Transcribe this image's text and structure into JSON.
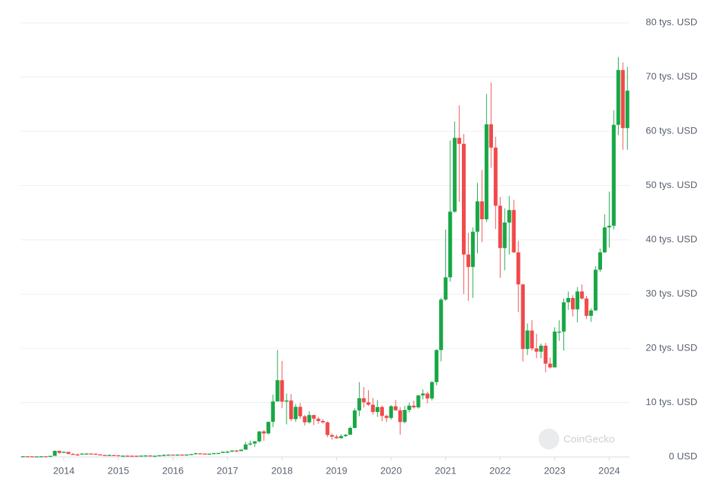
{
  "chart_data": {
    "type": "candlestick",
    "watermark": "CoinGecko",
    "up_color": "#18a745",
    "down_color": "#f04a4a",
    "grid": true,
    "ylim": [
      0,
      80000
    ],
    "yticks": [
      {
        "value": 0,
        "label": "0 USD"
      },
      {
        "value": 10000,
        "label": "10 tys. USD"
      },
      {
        "value": 20000,
        "label": "20 tys. USD"
      },
      {
        "value": 30000,
        "label": "30 tys. USD"
      },
      {
        "value": 40000,
        "label": "40 tys. USD"
      },
      {
        "value": 50000,
        "label": "50 tys. USD"
      },
      {
        "value": 60000,
        "label": "60 tys. USD"
      },
      {
        "value": 70000,
        "label": "70 tys. USD"
      },
      {
        "value": 80000,
        "label": "80 tys. USD"
      }
    ],
    "categories": [
      null,
      null,
      null,
      null,
      null,
      null,
      null,
      null,
      null,
      "2014",
      null,
      null,
      null,
      null,
      null,
      null,
      null,
      null,
      null,
      null,
      null,
      "2015",
      null,
      null,
      null,
      null,
      null,
      null,
      null,
      null,
      null,
      null,
      null,
      "2016",
      null,
      null,
      null,
      null,
      null,
      null,
      null,
      null,
      null,
      null,
      null,
      "2017",
      null,
      null,
      null,
      null,
      null,
      null,
      null,
      null,
      null,
      null,
      null,
      "2018",
      null,
      null,
      null,
      null,
      null,
      null,
      null,
      null,
      null,
      null,
      null,
      "2019",
      null,
      null,
      null,
      null,
      null,
      null,
      null,
      null,
      null,
      null,
      null,
      "2020",
      null,
      null,
      null,
      null,
      null,
      null,
      null,
      null,
      null,
      null,
      null,
      "2021",
      null,
      null,
      null,
      null,
      null,
      null,
      null,
      null,
      null,
      null,
      null,
      "2022",
      null,
      null,
      null,
      null,
      null,
      null,
      null,
      null,
      null,
      null,
      null,
      "2023",
      null,
      null,
      null,
      null,
      null,
      null,
      null,
      null,
      null,
      null,
      null,
      "2024",
      null,
      null,
      null,
      null
    ],
    "open": [
      135,
      139,
      129,
      97,
      106,
      135,
      133,
      198,
      1130,
      754,
      938,
      550,
      458,
      448,
      624,
      640,
      587,
      478,
      387,
      338,
      378,
      320,
      217,
      254,
      244,
      236,
      230,
      263,
      285,
      230,
      237,
      314,
      377,
      430,
      369,
      437,
      416,
      448,
      531,
      673,
      624,
      575,
      609,
      701,
      742,
      964,
      970,
      1190,
      1080,
      1350,
      2300,
      2480,
      2875,
      4700,
      4340,
      6470,
      10230,
      14150,
      10200,
      10400,
      6970,
      9240,
      7490,
      6390,
      7730,
      7040,
      6630,
      6370,
      4040,
      3740,
      3460,
      3850,
      4100,
      5350,
      8570,
      10820,
      10080,
      9630,
      8290,
      9200,
      7570,
      7190,
      9350,
      8600,
      6440,
      8660,
      9460,
      9140,
      11350,
      11680,
      10780,
      13800,
      19700,
      29000,
      33100,
      45200,
      58800,
      57700,
      37300,
      35000,
      41500,
      47100,
      43800,
      61300,
      57000,
      46300,
      38500,
      43200,
      45500,
      37700,
      31800,
      19900,
      23300,
      20000,
      19400,
      20500,
      17200,
      16500,
      23100,
      23100,
      28500,
      29300,
      27200,
      30500,
      29200,
      26000,
      27000,
      34500,
      37700,
      42300,
      42600,
      61200,
      71300,
      60600
    ],
    "high": [
      148,
      140,
      130,
      110,
      136,
      140,
      215,
      1150,
      1150,
      1020,
      940,
      700,
      640,
      630,
      680,
      650,
      600,
      480,
      410,
      460,
      380,
      320,
      265,
      300,
      260,
      245,
      265,
      315,
      285,
      260,
      315,
      500,
      465,
      450,
      440,
      440,
      465,
      535,
      780,
      680,
      630,
      615,
      720,
      755,
      970,
      1160,
      1200,
      1290,
      1350,
      2760,
      3000,
      2920,
      4770,
      4980,
      6470,
      11500,
      19700,
      17700,
      11700,
      11600,
      9750,
      9940,
      7750,
      8450,
      7760,
      7400,
      6970,
      6560,
      4300,
      4100,
      4200,
      4200,
      5600,
      9000,
      13800,
      12900,
      12300,
      10900,
      10500,
      9500,
      7800,
      9550,
      10500,
      9170,
      9400,
      10000,
      10400,
      11400,
      12450,
      12050,
      14000,
      19850,
      29300,
      41900,
      58300,
      61800,
      64800,
      59500,
      41300,
      42300,
      50500,
      52900,
      66900,
      69000,
      59000,
      47900,
      45800,
      48100,
      47400,
      39800,
      31900,
      24600,
      25200,
      22700,
      20900,
      21000,
      18300,
      23900,
      25200,
      29200,
      30500,
      29800,
      31300,
      31800,
      29700,
      27400,
      35200,
      38400,
      44700,
      48900,
      63900,
      73700,
      72700,
      71900
    ],
    "low": [
      80,
      104,
      95,
      90,
      102,
      119,
      130,
      200,
      522,
      750,
      550,
      400,
      350,
      440,
      560,
      570,
      460,
      380,
      290,
      330,
      310,
      170,
      210,
      240,
      215,
      230,
      220,
      260,
      200,
      225,
      235,
      300,
      340,
      350,
      365,
      410,
      415,
      445,
      530,
      590,
      530,
      570,
      600,
      700,
      740,
      750,
      920,
      890,
      1080,
      1350,
      2100,
      1840,
      2700,
      2980,
      4150,
      5500,
      10900,
      9000,
      6000,
      6600,
      6500,
      7020,
      5800,
      6150,
      5900,
      6120,
      6150,
      3650,
      3200,
      3350,
      3400,
      3700,
      4050,
      5300,
      7500,
      9100,
      9400,
      7800,
      7400,
      6600,
      6450,
      6900,
      8500,
      4100,
      6200,
      8200,
      8900,
      8900,
      10600,
      9900,
      10400,
      13200,
      17600,
      28800,
      32300,
      45000,
      47000,
      30000,
      28800,
      29300,
      37500,
      39600,
      43300,
      53300,
      42000,
      33000,
      34400,
      37300,
      37600,
      26700,
      17600,
      18800,
      19600,
      18200,
      18200,
      15600,
      16300,
      16500,
      21400,
      19600,
      27100,
      25900,
      24800,
      29000,
      25400,
      24900,
      26900,
      34100,
      37600,
      38600,
      41900,
      59300,
      56600,
      56600
    ],
    "close": [
      139,
      129,
      97,
      106,
      135,
      133,
      198,
      1130,
      754,
      938,
      550,
      458,
      448,
      624,
      640,
      587,
      478,
      387,
      338,
      378,
      320,
      217,
      254,
      244,
      236,
      230,
      263,
      285,
      230,
      237,
      314,
      377,
      430,
      369,
      437,
      416,
      448,
      531,
      673,
      624,
      575,
      609,
      701,
      742,
      964,
      970,
      1190,
      1080,
      1350,
      2300,
      2480,
      2875,
      4700,
      4340,
      6470,
      10230,
      14150,
      10200,
      10400,
      6970,
      9240,
      7490,
      6390,
      7730,
      7040,
      6630,
      6370,
      4040,
      3740,
      3460,
      3850,
      4100,
      5350,
      8570,
      10820,
      10080,
      9630,
      8290,
      9200,
      7570,
      7190,
      9350,
      8600,
      6440,
      8660,
      9460,
      9140,
      11350,
      11680,
      10780,
      13800,
      19700,
      29000,
      33100,
      45200,
      58800,
      57700,
      37300,
      35000,
      41500,
      47100,
      43800,
      61300,
      57000,
      46300,
      38500,
      43200,
      45500,
      37700,
      31800,
      19900,
      23300,
      20000,
      19400,
      20500,
      17200,
      16500,
      23100,
      23100,
      28500,
      29300,
      27200,
      30500,
      29200,
      26000,
      27000,
      34500,
      37700,
      42300,
      42600,
      61200,
      71300,
      60600,
      67500
    ]
  }
}
